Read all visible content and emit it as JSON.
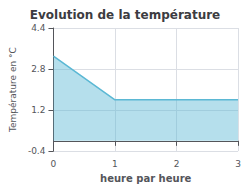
{
  "chart_data": {
    "type": "area",
    "title": "Evolution de la température",
    "xlabel": "heure par heure",
    "ylabel": "Température en °C",
    "x": [
      0,
      1,
      3
    ],
    "values": [
      3.3,
      1.6,
      1.6
    ],
    "color": "#5bb8d4",
    "xlim": [
      0,
      3
    ],
    "xticks": [
      0,
      1,
      2,
      3
    ],
    "ylim": [
      -0.4,
      4.4
    ],
    "yticks": [
      -0.4,
      1.2,
      2.8,
      4.4
    ],
    "grid": true
  }
}
